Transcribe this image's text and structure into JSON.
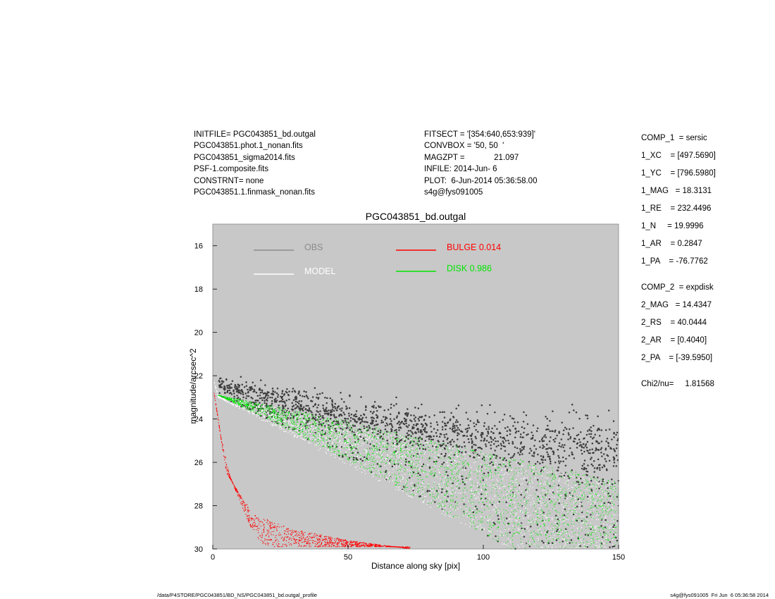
{
  "header_left": [
    "INITFILE= PGC043851_bd.outgal",
    "PGC043851.phot.1_nonan.fits",
    "PGC043851_sigma2014.fits",
    "PSF-1.composite.fits",
    "CONSTRNT= none",
    "PGC043851.1.finmask_nonan.fits"
  ],
  "header_mid": [
    "FITSECT = '[354:640,653:939]'",
    "CONVBOX = '50, 50  '",
    "MAGZPT =             21.097",
    "INFILE: 2014-Jun- 6",
    "PLOT:  6-Jun-2014 05:36:58.00",
    "s4g@fys091005"
  ],
  "params": [
    "COMP_1  = sersic",
    "1_XC    = [497.5690]",
    "1_YC    = [796.5980]",
    "1_MAG   = 18.3131",
    "1_RE    = 232.4496",
    "1_N     = 19.9996",
    "1_AR    = 0.2847",
    "1_PA    = -76.7762",
    "COMP_2  = expdisk",
    "2_MAG   = 14.4347",
    "2_RS    = 40.0444",
    "2_AR    = [0.4040]",
    "2_PA    = [-39.5950]",
    "Chi2/nu=     1.81568"
  ],
  "footer_left": "/data/P4STORE/PGC043851/BD_NS/PGC043851_bd.outgal_profile",
  "footer_right": "s4g@fys091005  Fri Jun  6 05:36:58 2014",
  "colors": {
    "plot_bg": "#c8c8c8",
    "obs": "#3c3c3c",
    "model": "#ffffff",
    "bulge": "#ff0000",
    "disk": "#00e600",
    "legend_obs_text": "#8c8c8c"
  },
  "chart_data": {
    "type": "scatter",
    "title": "PGC043851_bd.outgal",
    "xlabel": "Distance along sky [pix]",
    "ylabel": "magnitude/arcsec^2",
    "xlim": [
      0,
      150
    ],
    "ylim": [
      30,
      15
    ],
    "y_inverted": true,
    "xticks": [
      0,
      50,
      100,
      150
    ],
    "yticks": [
      16,
      18,
      20,
      22,
      24,
      26,
      28,
      30
    ],
    "grid": false,
    "legend_position": "top",
    "legend": [
      {
        "name": "OBS",
        "color": "#8c8c8c",
        "text": "OBS"
      },
      {
        "name": "MODEL",
        "color": "#ffffff",
        "text": "MODEL"
      },
      {
        "name": "BULGE",
        "color": "#ff0000",
        "text": "BULGE  0.014"
      },
      {
        "name": "DISK",
        "color": "#00e600",
        "text": "DISK  0.986"
      }
    ],
    "bulge_fraction": 0.014,
    "disk_fraction": 0.986,
    "series": [
      {
        "name": "DISK",
        "description_points": "wedge band",
        "upper_edge": [
          [
            2,
            22.9
          ],
          [
            50,
            24.1
          ],
          [
            100,
            25.5
          ],
          [
            150,
            26.9
          ]
        ],
        "lower_edge": [
          [
            2,
            22.9
          ],
          [
            30,
            24.6
          ],
          [
            60,
            26.6
          ],
          [
            90,
            28.6
          ],
          [
            110,
            30
          ]
        ]
      },
      {
        "name": "MODEL",
        "upper_edge": [
          [
            0.5,
            22.3
          ],
          [
            2,
            22.9
          ],
          [
            50,
            24.2
          ],
          [
            100,
            25.6
          ],
          [
            150,
            27.0
          ]
        ],
        "lower_edge": [
          [
            0.5,
            22.3
          ],
          [
            2,
            23.0
          ],
          [
            60,
            26.8
          ],
          [
            110,
            30
          ],
          [
            150,
            30
          ]
        ]
      },
      {
        "name": "BULGE",
        "inner_edge": [
          [
            0.5,
            22.8
          ],
          [
            3,
            24.8
          ],
          [
            6,
            26.5
          ],
          [
            10,
            27.8
          ],
          [
            14,
            29.0
          ],
          [
            19,
            29.9
          ]
        ],
        "outer_edge": [
          [
            0.5,
            22.8
          ],
          [
            5,
            26.5
          ],
          [
            15,
            28.4
          ],
          [
            30,
            29.1
          ],
          [
            50,
            29.6
          ],
          [
            73,
            30
          ]
        ]
      },
      {
        "name": "OBS",
        "trend": [
          [
            2,
            22.5
          ],
          [
            50,
            23.9
          ],
          [
            100,
            24.9
          ],
          [
            150,
            25.6
          ]
        ],
        "scatter_mag": 0.7
      }
    ]
  }
}
